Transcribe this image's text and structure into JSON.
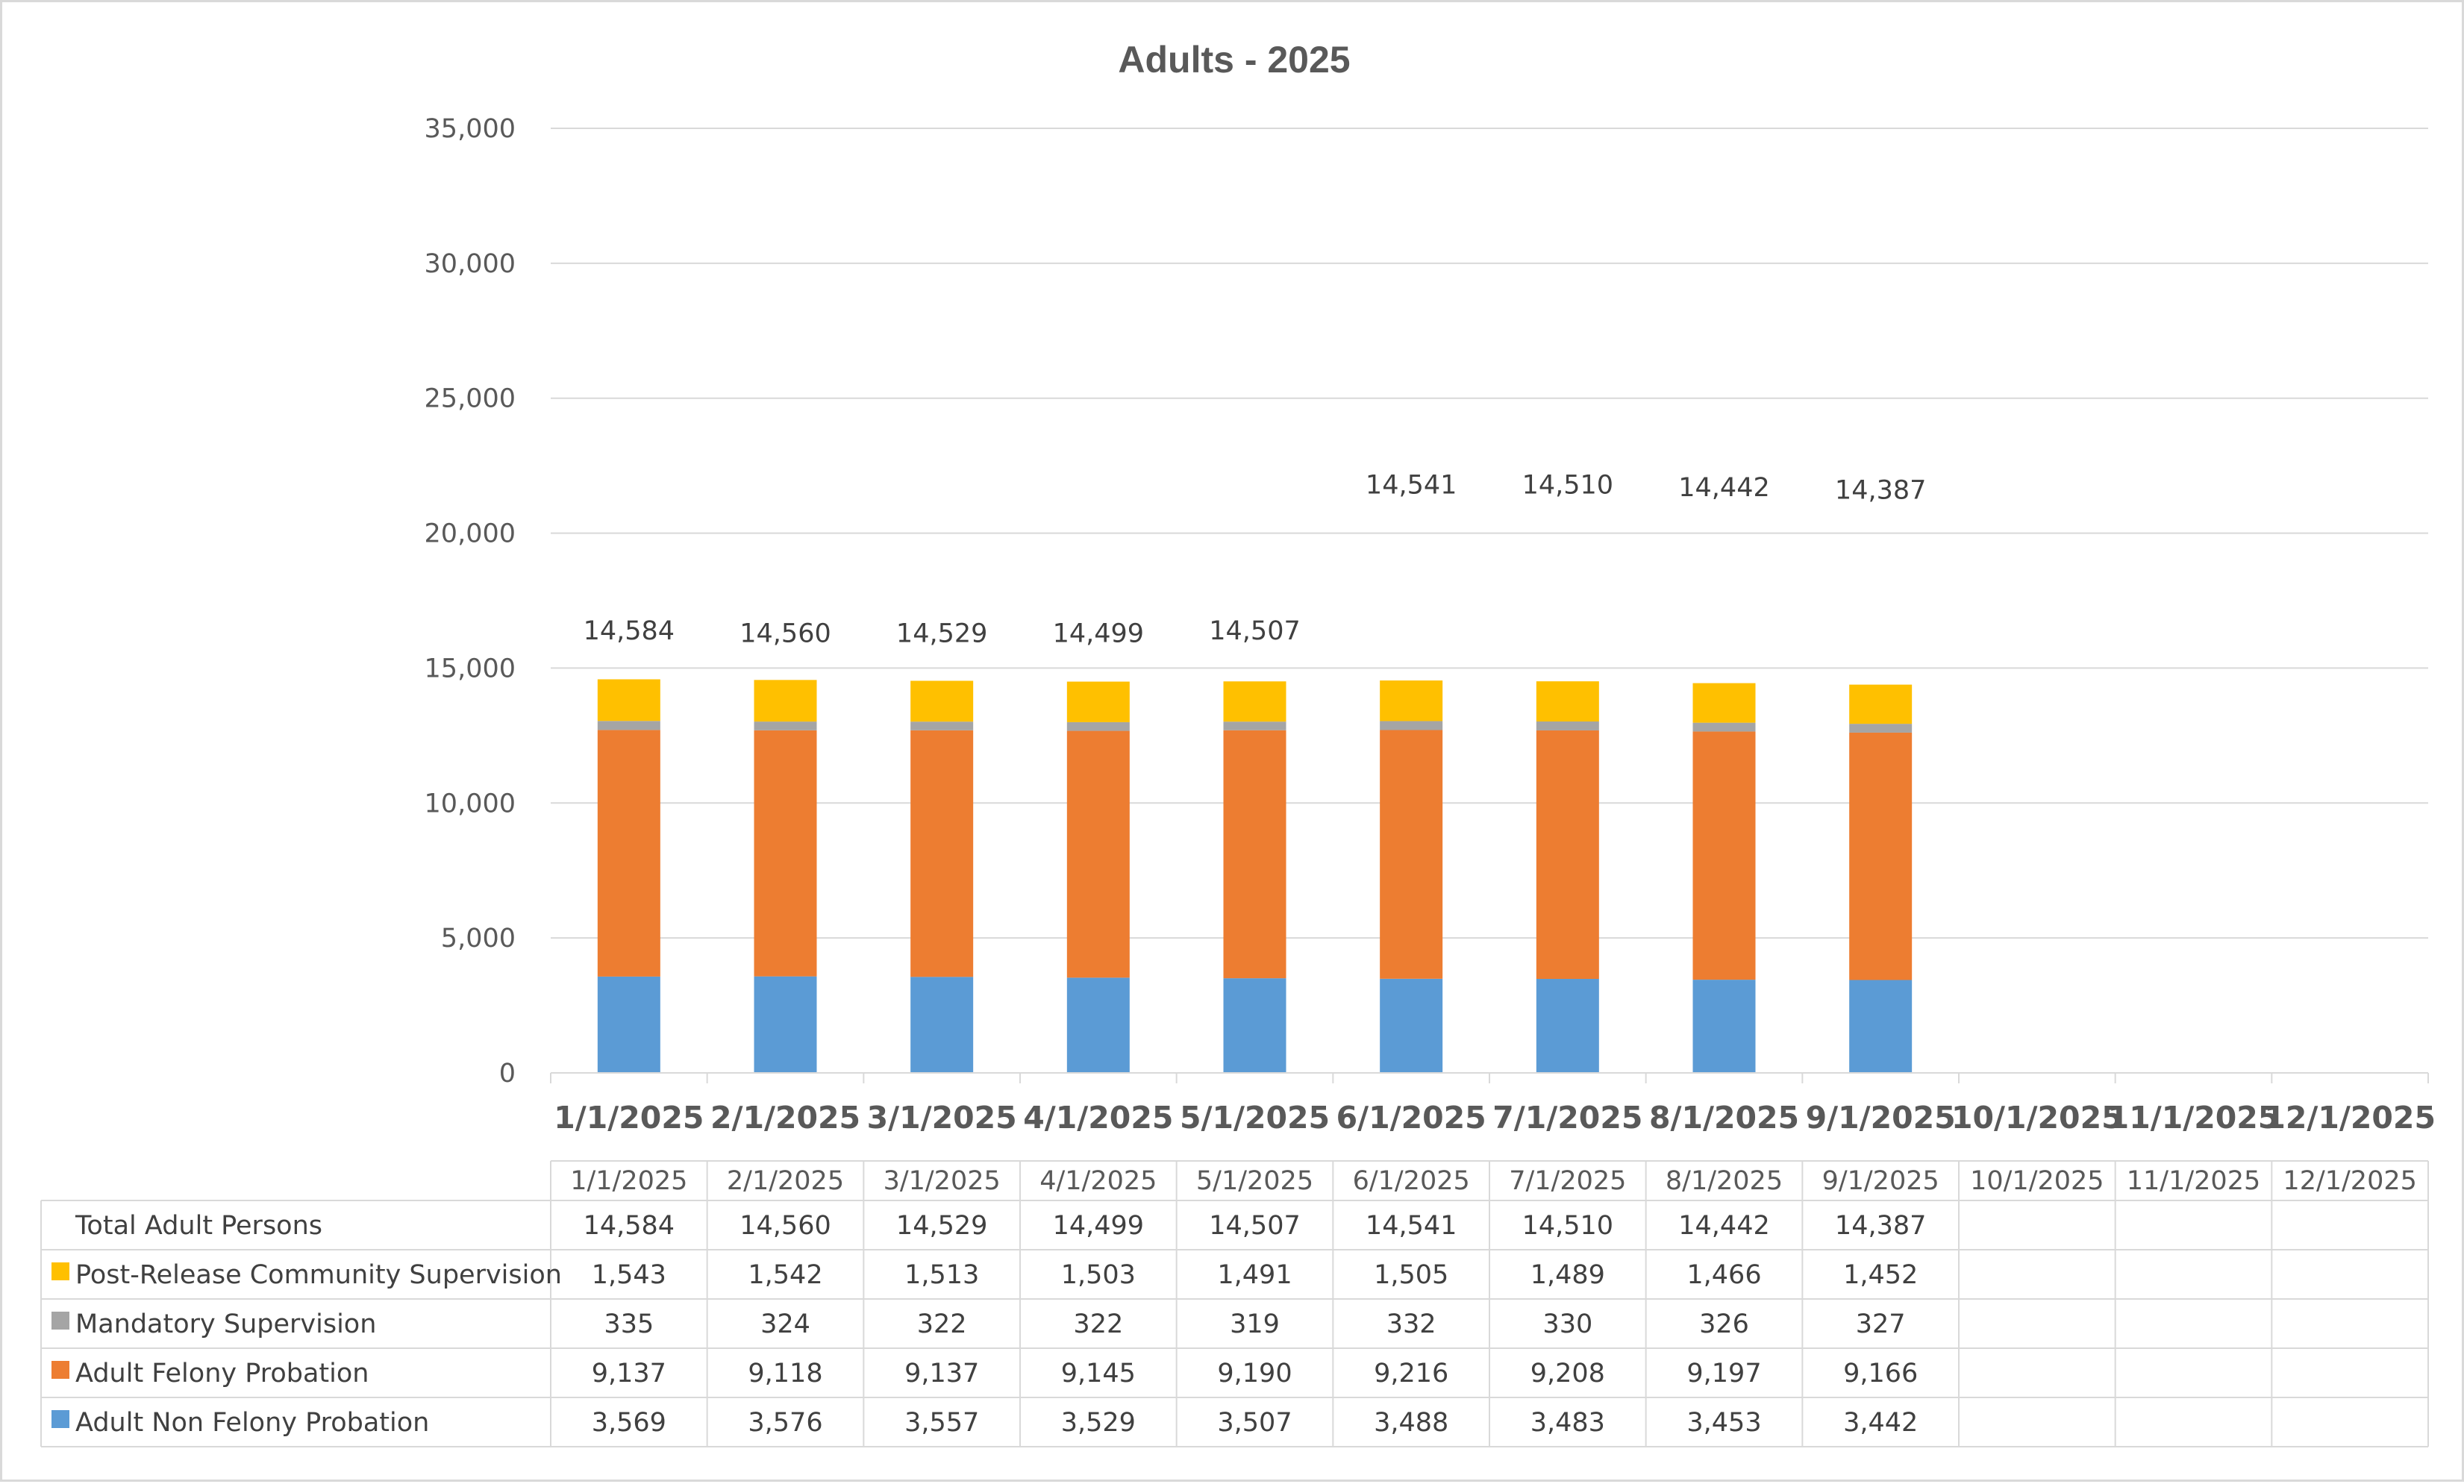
{
  "chart_data": {
    "type": "bar",
    "stacked": true,
    "title": "Adults - 2025",
    "xlabel": "",
    "ylabel": "",
    "ylim": [
      0,
      35000
    ],
    "y_ticks": [
      "0",
      "5,000",
      "10,000",
      "15,000",
      "20,000",
      "25,000",
      "30,000",
      "35,000"
    ],
    "grid": true,
    "legend": "in data table",
    "categories": [
      "1/1/2025",
      "2/1/2025",
      "3/1/2025",
      "4/1/2025",
      "5/1/2025",
      "6/1/2025",
      "7/1/2025",
      "8/1/2025",
      "9/1/2025",
      "10/1/2025",
      "11/1/2025",
      "12/1/2025"
    ],
    "series": [
      {
        "name": "Adult Non Felony Probation",
        "color": "#5b9bd5",
        "values": [
          3569,
          3576,
          3557,
          3529,
          3507,
          3488,
          3483,
          3453,
          3442,
          null,
          null,
          null
        ],
        "labels": [
          "3,569",
          "3,576",
          "3,557",
          "3,529",
          "3,507",
          "3,488",
          "3,483",
          "3,453",
          "3,442",
          "",
          "",
          ""
        ]
      },
      {
        "name": "Adult Felony Probation",
        "color": "#ed7d31",
        "values": [
          9137,
          9118,
          9137,
          9145,
          9190,
          9216,
          9208,
          9197,
          9166,
          null,
          null,
          null
        ],
        "labels": [
          "9,137",
          "9,118",
          "9,137",
          "9,145",
          "9,190",
          "9,216",
          "9,208",
          "9,197",
          "9,166",
          "",
          "",
          ""
        ]
      },
      {
        "name": "Mandatory Supervision",
        "color": "#a5a5a5",
        "values": [
          335,
          324,
          322,
          322,
          319,
          332,
          330,
          326,
          327,
          null,
          null,
          null
        ],
        "labels": [
          "335",
          "324",
          "322",
          "322",
          "319",
          "332",
          "330",
          "326",
          "327",
          "",
          "",
          ""
        ]
      },
      {
        "name": "Post-Release Community Supervision",
        "color": "#ffc000",
        "values": [
          1543,
          1542,
          1513,
          1503,
          1491,
          1505,
          1489,
          1466,
          1452,
          null,
          null,
          null
        ],
        "labels": [
          "1,543",
          "1,542",
          "1,513",
          "1,503",
          "1,491",
          "1,505",
          "1,489",
          "1,466",
          "1,452",
          "",
          "",
          ""
        ]
      }
    ],
    "totals": {
      "name": "Total Adult Persons",
      "values": [
        14584,
        14560,
        14529,
        14499,
        14507,
        14541,
        14510,
        14442,
        14387,
        null,
        null,
        null
      ],
      "labels": [
        "14,584",
        "14,560",
        "14,529",
        "14,499",
        "14,507",
        "14,541",
        "14,510",
        "14,442",
        "14,387",
        "",
        "",
        ""
      ],
      "label_heights": [
        16400,
        16300,
        16300,
        16300,
        16400,
        21800,
        21800,
        21700,
        21600,
        null,
        null,
        null
      ]
    }
  }
}
